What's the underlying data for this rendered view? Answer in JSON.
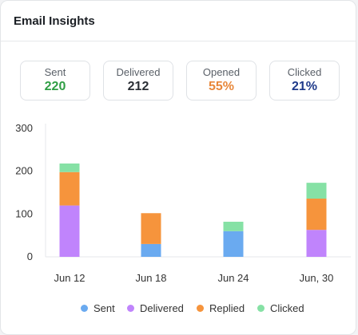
{
  "card": {
    "title": "Email Insights"
  },
  "stats": [
    {
      "label": "Sent",
      "value": "220",
      "color": "#2f9e44"
    },
    {
      "label": "Delivered",
      "value": "212",
      "color": "#2b2f35"
    },
    {
      "label": "Opened",
      "value": "55%",
      "color": "#e8873a"
    },
    {
      "label": "Clicked",
      "value": "21%",
      "color": "#1f3a8a"
    }
  ],
  "chart_data": {
    "type": "bar",
    "stacked": true,
    "categories": [
      "Jun 12",
      "Jun 18",
      "Jun 24",
      "Jun, 30"
    ],
    "ylim": [
      0,
      300
    ],
    "yticks": [
      0,
      100,
      200,
      300
    ],
    "series": [
      {
        "name": "Sent",
        "color": "#6aaaf0",
        "values": [
          0,
          30,
          60,
          0
        ]
      },
      {
        "name": "Delivered",
        "color": "#c084fc",
        "values": [
          120,
          0,
          0,
          63
        ]
      },
      {
        "name": "Replied",
        "color": "#f6943c",
        "values": [
          78,
          72,
          0,
          73
        ]
      },
      {
        "name": "Clicked",
        "color": "#86e1a5",
        "values": [
          20,
          0,
          22,
          37
        ]
      }
    ],
    "legend_position": "bottom"
  }
}
